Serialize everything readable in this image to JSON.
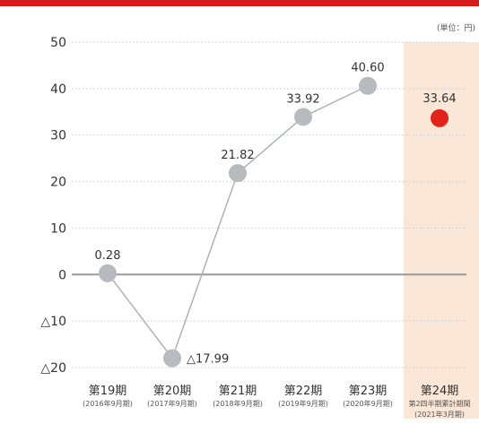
{
  "unit_label": "(単位：円)",
  "chart_data": {
    "type": "line",
    "title": "",
    "xlabel": "",
    "ylabel": "",
    "ylim": [
      -20,
      50
    ],
    "y_ticks": [
      {
        "value": 50,
        "label": "50"
      },
      {
        "value": 40,
        "label": "40"
      },
      {
        "value": 30,
        "label": "30"
      },
      {
        "value": 20,
        "label": "20"
      },
      {
        "value": 10,
        "label": "10"
      },
      {
        "value": 0,
        "label": "0"
      },
      {
        "value": -10,
        "label": "△10"
      },
      {
        "value": -20,
        "label": "△20"
      }
    ],
    "categories": [
      {
        "label": "第19期",
        "sub": "(2016年9月期)"
      },
      {
        "label": "第20期",
        "sub": "(2017年9月期)"
      },
      {
        "label": "第21期",
        "sub": "(2018年9月期)"
      },
      {
        "label": "第22期",
        "sub": "(2019年9月期)"
      },
      {
        "label": "第23期",
        "sub": "(2020年9月期)"
      },
      {
        "label": "第24期",
        "sub": "第2四半期累計期間",
        "sub2": "(2021年3月期)"
      }
    ],
    "actual": {
      "values": [
        0.28,
        -17.99,
        21.82,
        33.92,
        40.6
      ],
      "labels": [
        "0.28",
        "△17.99",
        "21.82",
        "33.92",
        "40.60"
      ],
      "color": "#b7bbc0",
      "line_color": "#aeb2b6"
    },
    "current": {
      "value": 33.64,
      "label": "33.64",
      "color": "#e2231a",
      "highlight_color": "#fbe7d8"
    },
    "grid": true,
    "zero_line": true
  }
}
